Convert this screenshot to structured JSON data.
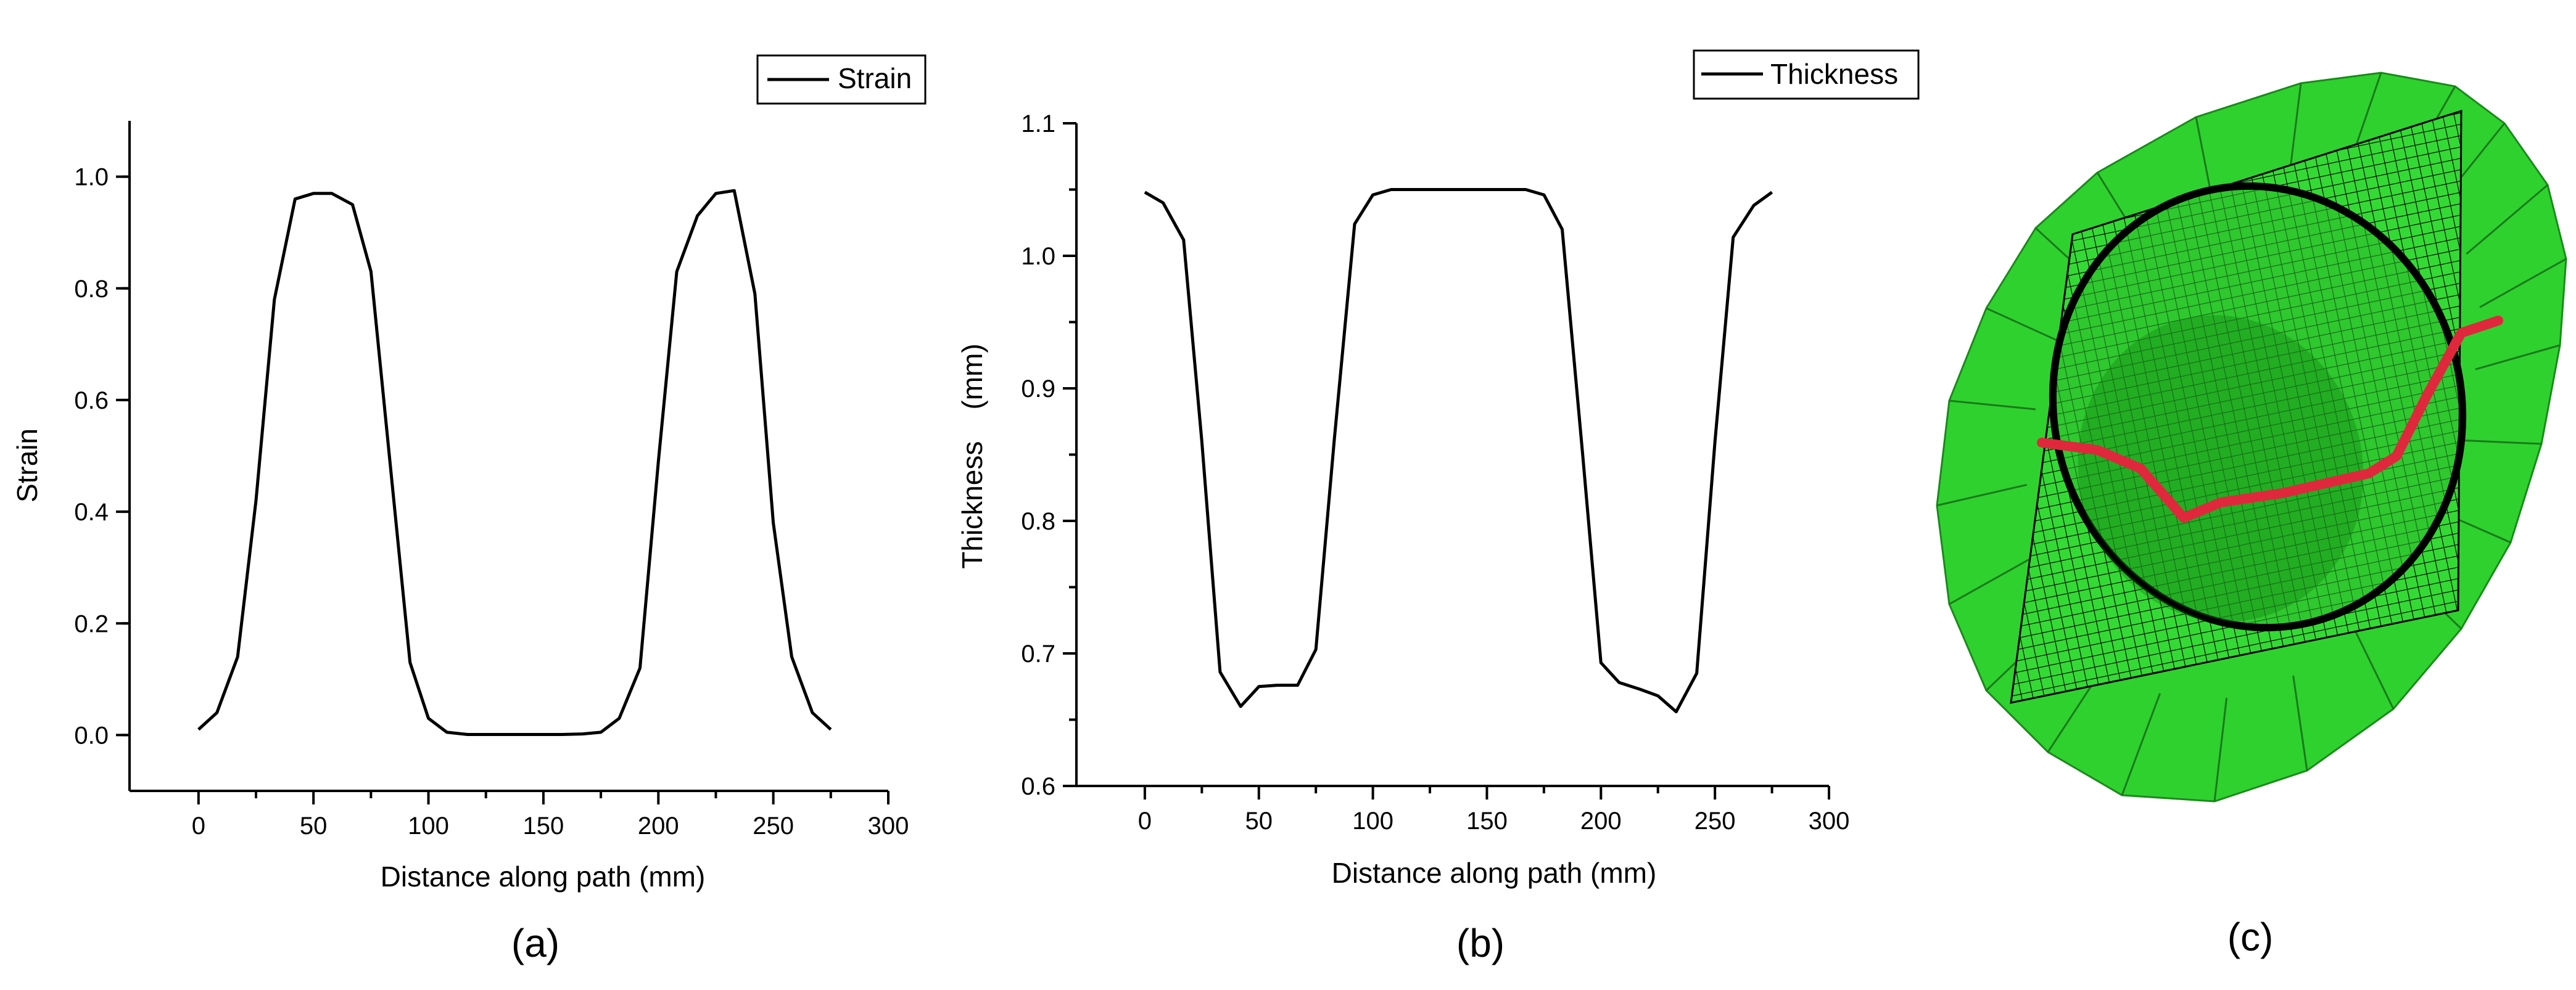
{
  "chart_data": [
    {
      "type": "line",
      "panel_label": "(a)",
      "title": "",
      "xlabel": "Distance along path (mm)",
      "ylabel": "Strain",
      "xlim": [
        -30,
        300
      ],
      "ylim": [
        -0.1,
        1.1
      ],
      "xticks": [
        0,
        50,
        100,
        150,
        200,
        250,
        300
      ],
      "yticks": [
        0.0,
        0.2,
        0.4,
        0.6,
        0.8,
        1.0
      ],
      "ytick_labels": [
        "0.0",
        "0.2",
        "0.4",
        "0.6",
        "0.8",
        "1.0"
      ],
      "legend": [
        "Strain"
      ],
      "legend_position": "top-right",
      "series": [
        {
          "name": "Strain",
          "x": [
            0,
            8,
            17,
            25,
            33,
            42,
            50,
            58,
            67,
            75,
            83,
            92,
            100,
            108,
            117,
            125,
            133,
            142,
            150,
            158,
            167,
            175,
            183,
            192,
            200,
            208,
            217,
            225,
            233,
            242,
            250,
            258,
            267,
            275
          ],
          "y": [
            0.01,
            0.04,
            0.14,
            0.42,
            0.78,
            0.96,
            0.97,
            0.97,
            0.95,
            0.83,
            0.5,
            0.13,
            0.03,
            0.005,
            0.001,
            0.001,
            0.001,
            0.001,
            0.001,
            0.001,
            0.002,
            0.005,
            0.03,
            0.12,
            0.49,
            0.83,
            0.93,
            0.97,
            0.975,
            0.79,
            0.38,
            0.14,
            0.04,
            0.01
          ]
        }
      ]
    },
    {
      "type": "line",
      "panel_label": "(b)",
      "title": "",
      "xlabel": "Distance along path (mm)",
      "ylabel": "Thickness    (mm)",
      "xlim": [
        -30,
        300
      ],
      "ylim": [
        0.6,
        1.1
      ],
      "xticks": [
        0,
        50,
        100,
        150,
        200,
        250,
        300
      ],
      "yticks": [
        0.6,
        0.7,
        0.8,
        0.9,
        1.0,
        1.1
      ],
      "ytick_labels": [
        "0.6",
        "0.7",
        "0.8",
        "0.9",
        "1.0",
        "1.1"
      ],
      "legend": [
        "Thickness"
      ],
      "legend_position": "top-right",
      "series": [
        {
          "name": "Thickness",
          "x": [
            0,
            8,
            17,
            25,
            33,
            42,
            50,
            58,
            67,
            75,
            83,
            92,
            100,
            108,
            117,
            125,
            133,
            142,
            150,
            158,
            167,
            175,
            183,
            192,
            200,
            208,
            217,
            225,
            233,
            242,
            250,
            258,
            267,
            275
          ],
          "y": [
            1.048,
            1.04,
            1.012,
            0.86,
            0.686,
            0.66,
            0.675,
            0.676,
            0.676,
            0.703,
            0.86,
            1.024,
            1.046,
            1.05,
            1.05,
            1.05,
            1.05,
            1.05,
            1.05,
            1.05,
            1.05,
            1.046,
            1.02,
            0.85,
            0.693,
            0.678,
            0.673,
            0.668,
            0.656,
            0.685,
            0.86,
            1.014,
            1.038,
            1.048
          ]
        }
      ]
    }
  ],
  "panel_c": {
    "label": "(c)",
    "description_colors": {
      "flange": "#2fd12f",
      "mesh": "#000000",
      "path": "#e0283c"
    }
  }
}
